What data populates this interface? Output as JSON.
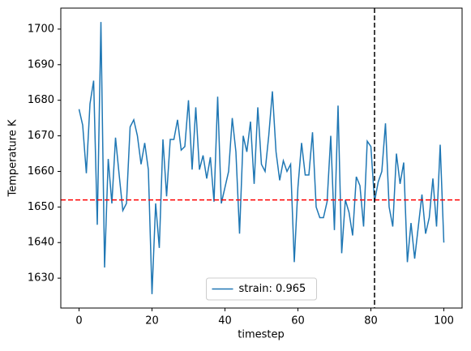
{
  "chart_data": {
    "type": "line",
    "x_label": "timestep",
    "y_label": "Temperature K",
    "x": [
      0,
      1,
      2,
      3,
      4,
      5,
      6,
      7,
      8,
      9,
      10,
      11,
      12,
      13,
      14,
      15,
      16,
      17,
      18,
      19,
      20,
      21,
      22,
      23,
      24,
      25,
      26,
      27,
      28,
      29,
      30,
      31,
      32,
      33,
      34,
      35,
      36,
      37,
      38,
      39,
      40,
      41,
      42,
      43,
      44,
      45,
      46,
      47,
      48,
      49,
      50,
      51,
      52,
      53,
      54,
      55,
      56,
      57,
      58,
      59,
      60,
      61,
      62,
      63,
      64,
      65,
      66,
      67,
      68,
      69,
      70,
      71,
      72,
      73,
      74,
      75,
      76,
      77,
      78,
      79,
      80,
      81,
      82,
      83,
      84,
      85,
      86,
      87,
      88,
      89,
      90,
      91,
      92,
      93,
      94,
      95,
      96,
      97,
      98,
      99,
      100
    ],
    "series": [
      {
        "name": "strain: 0.965",
        "color": "#1f77b4",
        "values": [
          1677.5,
          1673,
          1659.5,
          1679,
          1685.5,
          1645,
          1702,
          1633,
          1663.5,
          1651,
          1669.5,
          1659,
          1649,
          1651,
          1672.5,
          1674.5,
          1670,
          1662,
          1668,
          1660.5,
          1625.5,
          1651,
          1638.5,
          1669,
          1653,
          1669,
          1669,
          1674.5,
          1666,
          1667,
          1680,
          1660.5,
          1678,
          1660.5,
          1664.5,
          1658,
          1664,
          1651.5,
          1681,
          1651,
          1655.5,
          1660,
          1675,
          1665.5,
          1642.5,
          1670,
          1665.5,
          1674,
          1656.5,
          1678,
          1662,
          1660,
          1670,
          1682.5,
          1665.5,
          1657.5,
          1663,
          1660,
          1662,
          1634.5,
          1655.5,
          1668,
          1659,
          1659,
          1671,
          1650,
          1647,
          1647,
          1651.5,
          1670,
          1643.5,
          1678.5,
          1637,
          1652,
          1648.5,
          1642,
          1658.5,
          1656,
          1644.5,
          1668.5,
          1667,
          1651.5,
          1657,
          1660,
          1673.5,
          1650,
          1644.5,
          1665,
          1656.5,
          1662.5,
          1634.5,
          1645.5,
          1635.5,
          1644.5,
          1653.5,
          1642.5,
          1647,
          1658,
          1644.5,
          1667.5,
          1640
        ]
      }
    ],
    "hlines": [
      {
        "value": 1652,
        "color": "#ff0000"
      }
    ],
    "vlines": [
      {
        "value": 81,
        "color": "#000000"
      }
    ],
    "xlim": [
      -5,
      105
    ],
    "xticks": [
      0,
      20,
      40,
      60,
      80,
      100
    ],
    "ylim": [
      1621.6,
      1705.9
    ],
    "yticks": [
      1630,
      1640,
      1650,
      1660,
      1670,
      1680,
      1690,
      1700
    ],
    "legend": "lower center",
    "grid": false
  }
}
